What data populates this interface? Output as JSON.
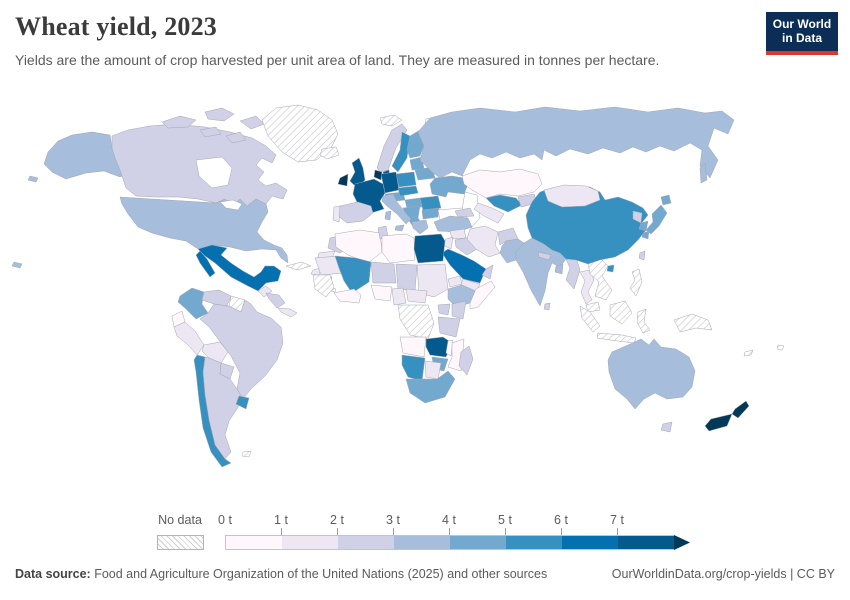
{
  "header": {
    "title": "Wheat yield, 2023",
    "subtitle": "Yields are the amount of crop harvested per unit area of land. They are measured in tonnes per hectare.",
    "logo": {
      "line1": "Our World",
      "line2": "in Data",
      "bg_color": "#0c2d56",
      "accent_color": "#d93a2d"
    }
  },
  "legend": {
    "no_data_label": "No data",
    "tick_labels": [
      "0 t",
      "1 t",
      "2 t",
      "3 t",
      "4 t",
      "5 t",
      "6 t",
      "7 t"
    ],
    "colors": [
      "#fff7fb",
      "#ece7f2",
      "#d0d1e6",
      "#a6bddb",
      "#74a9cf",
      "#3690c0",
      "#0570b0",
      "#045a8d"
    ],
    "arrow_color": "#023858"
  },
  "footer": {
    "source_label": "Data source:",
    "source_text": " Food and Agriculture Organization of the United Nations (2025) and other sources",
    "link_text": "OurWorldinData.org/crop-yields | CC BY"
  },
  "chart_data": {
    "type": "choropleth",
    "title": "Wheat yield, 2023",
    "unit": "tonnes per hectare",
    "legend_bin_labels": [
      "0 t",
      "1 t",
      "2 t",
      "3 t",
      "4 t",
      "5 t",
      "6 t",
      "7 t"
    ],
    "palette": [
      "#fff7fb",
      "#ece7f2",
      "#d0d1e6",
      "#a6bddb",
      "#74a9cf",
      "#3690c0",
      "#0570b0",
      "#045a8d",
      "#023858"
    ],
    "bucket_ranges": [
      "0-1 t",
      "1-2 t",
      "2-3 t",
      "3-4 t",
      "4-5 t",
      "5-6 t",
      "6-7 t",
      "7-8 t",
      ">8 t"
    ],
    "no_data_key": "no-data",
    "countries": {
      "alaska": 3,
      "canada": 2,
      "canada-arctic": 2,
      "greenland": "no-data",
      "iceland": "no-data",
      "usa": 3,
      "mexico": 6,
      "guatemala": 1,
      "honduras-nicaragua": 2,
      "costa-rica-panama": 1,
      "cuba": "no-data",
      "hispaniola": 1,
      "caribbean-islands": "no-data",
      "colombia": 4,
      "venezuela": 2,
      "guianas": "no-data",
      "brazil": 2,
      "ecuador": 0,
      "peru": 1,
      "bolivia": 1,
      "paraguay": 2,
      "argentina": 2,
      "chile": 5,
      "uruguay": 5,
      "falklands": "no-data",
      "svalbard": "no-data",
      "ireland": 8,
      "uk": 7,
      "norway": 2,
      "sweden": 5,
      "finland": 4,
      "denmark": 7,
      "baltics": 4,
      "belarus": 4,
      "poland": 5,
      "germany": 7,
      "benelux": 8,
      "france": 7,
      "spain": 2,
      "portugal": 1,
      "switzerland-austria": 4,
      "czech-slovakia": 5,
      "hungary": 4,
      "ukraine": 4,
      "romania": 5,
      "balkans": 4,
      "bulgaria": 4,
      "greece": 3,
      "italy": 3,
      "sardinia": 3,
      "russia": 3,
      "sakhalin": 3,
      "kazakhstan": 0,
      "uzbekistan": 5,
      "turkmenistan": 1,
      "kyrgyz-tajik": 2,
      "caucasus": 2,
      "turkey": 3,
      "syria": 1,
      "jordan-israel": 1,
      "iraq": 2,
      "iran": 1,
      "afghanistan": 2,
      "pakistan": 3,
      "saudi-arabia": 6,
      "yemen": 1,
      "oman": 2,
      "india": 3,
      "nepal": 2,
      "bangladesh": 3,
      "sri-lanka": 2,
      "myanmar": 2,
      "thailand": 1,
      "indochina": "no-data",
      "malaysia": "no-data",
      "sumatra": "no-data",
      "borneo": "no-data",
      "java": "no-data",
      "sulawesi": "no-data",
      "philippines": "no-data",
      "new-guinea": "no-data",
      "china": 5,
      "mongolia": 1,
      "hainan": 5,
      "taiwan": 2,
      "north-korea": 2,
      "south-korea": 4,
      "japan": 4,
      "morocco": 2,
      "w-sahara": 1,
      "algeria": 0,
      "tunisia": 2,
      "libya": 0,
      "egypt": 7,
      "mauritania": 1,
      "mali": 5,
      "niger": 2,
      "chad": 2,
      "sudan": 1,
      "eritrea": 1,
      "ethiopia": 3,
      "somalia": 0,
      "guinea-region": "no-data",
      "ghana-ivory": 0,
      "nigeria": 0,
      "cameroon": 1,
      "car": 1,
      "drc": "no-data",
      "uganda": 2,
      "kenya": 2,
      "tanzania": 2,
      "angola": 0,
      "zambia": 7,
      "malawi": 0,
      "mozambique": 0,
      "zimbabwe": 4,
      "namibia": 5,
      "botswana": 1,
      "south-africa": 4,
      "madagascar": 2,
      "australia": 3,
      "tasmania": 2,
      "new-zealand": 8,
      "new-caledonia": "no-data",
      "fiji": "no-data",
      "pacific-specks": "no-data"
    }
  }
}
